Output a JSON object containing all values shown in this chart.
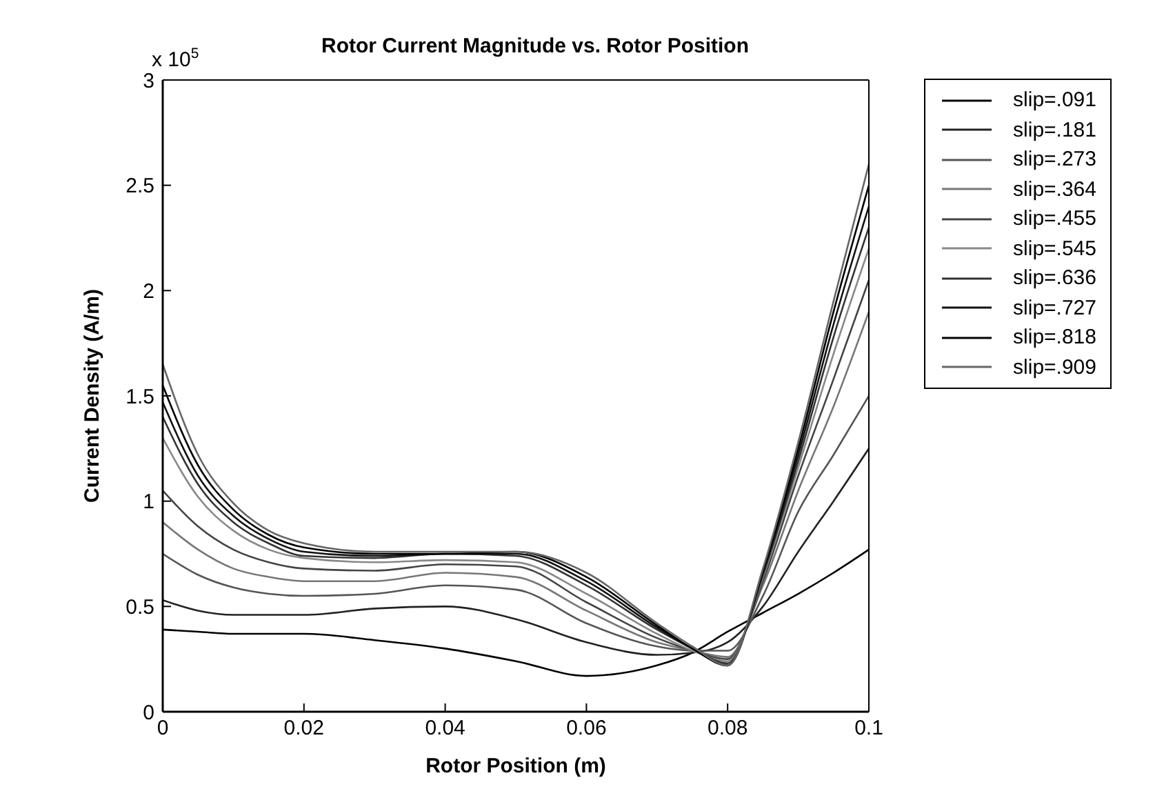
{
  "chart_data": {
    "type": "line",
    "title": "Rotor Current Magnitude vs. Rotor Position",
    "xlabel": "Rotor Position (m)",
    "ylabel": "Current Density (A/m)",
    "annotations": [
      "x 10$^{5}$"
    ],
    "x": [
      0,
      0.005,
      0.01,
      0.015,
      0.02,
      0.03,
      0.04,
      0.05,
      0.06,
      0.07,
      0.075,
      0.08,
      0.085,
      0.09,
      0.095,
      0.1
    ],
    "xlim": [
      0,
      0.1
    ],
    "xticks": [
      0,
      0.02,
      0.04,
      0.06,
      0.08,
      0.1
    ],
    "ylim": [
      0,
      3
    ],
    "yticks": [
      0,
      0.5,
      1,
      1.5,
      2,
      2.5,
      3
    ],
    "grid": false,
    "legend": "right",
    "marker": "none",
    "line_style": "solid",
    "series": [
      {
        "name": "slip=.091",
        "color": "#000000",
        "values": [
          0.39,
          0.38,
          0.37,
          0.37,
          0.37,
          0.34,
          0.3,
          0.24,
          0.17,
          0.22,
          0.28,
          0.38,
          0.47,
          0.56,
          0.66,
          0.77
        ]
      },
      {
        "name": "slip=.181",
        "color": "#222222",
        "values": [
          0.53,
          0.48,
          0.46,
          0.46,
          0.46,
          0.49,
          0.5,
          0.44,
          0.33,
          0.27,
          0.28,
          0.33,
          0.5,
          0.76,
          1.0,
          1.25
        ]
      },
      {
        "name": "slip=.273",
        "color": "#555555",
        "values": [
          0.75,
          0.65,
          0.59,
          0.56,
          0.55,
          0.56,
          0.6,
          0.58,
          0.42,
          0.31,
          0.29,
          0.29,
          0.55,
          0.95,
          1.22,
          1.5
        ]
      },
      {
        "name": "slip=.364",
        "color": "#777777",
        "values": [
          0.9,
          0.77,
          0.68,
          0.64,
          0.62,
          0.62,
          0.66,
          0.64,
          0.48,
          0.33,
          0.29,
          0.26,
          0.6,
          1.05,
          1.45,
          1.9
        ]
      },
      {
        "name": "slip=.455",
        "color": "#444444",
        "values": [
          1.05,
          0.88,
          0.77,
          0.71,
          0.68,
          0.67,
          0.7,
          0.69,
          0.52,
          0.35,
          0.29,
          0.25,
          0.62,
          1.12,
          1.58,
          2.05
        ]
      },
      {
        "name": "slip=.545",
        "color": "#888888",
        "values": [
          1.3,
          1.02,
          0.86,
          0.77,
          0.73,
          0.71,
          0.72,
          0.71,
          0.56,
          0.37,
          0.29,
          0.24,
          0.64,
          1.16,
          1.7,
          2.2
        ]
      },
      {
        "name": "slip=.636",
        "color": "#333333",
        "values": [
          1.4,
          1.08,
          0.9,
          0.8,
          0.74,
          0.73,
          0.75,
          0.74,
          0.6,
          0.39,
          0.3,
          0.23,
          0.65,
          1.19,
          1.78,
          2.3
        ]
      },
      {
        "name": "slip=.727",
        "color": "#111111",
        "values": [
          1.47,
          1.12,
          0.93,
          0.82,
          0.76,
          0.74,
          0.75,
          0.75,
          0.62,
          0.4,
          0.3,
          0.22,
          0.66,
          1.22,
          1.84,
          2.4
        ]
      },
      {
        "name": "slip=.818",
        "color": "#000000",
        "values": [
          1.55,
          1.17,
          0.96,
          0.84,
          0.78,
          0.75,
          0.75,
          0.76,
          0.64,
          0.41,
          0.3,
          0.22,
          0.67,
          1.25,
          1.9,
          2.5
        ]
      },
      {
        "name": "slip=.909",
        "color": "#666666",
        "values": [
          1.65,
          1.22,
          0.99,
          0.86,
          0.8,
          0.76,
          0.76,
          0.76,
          0.66,
          0.42,
          0.31,
          0.22,
          0.68,
          1.28,
          1.95,
          2.6
        ]
      }
    ]
  }
}
